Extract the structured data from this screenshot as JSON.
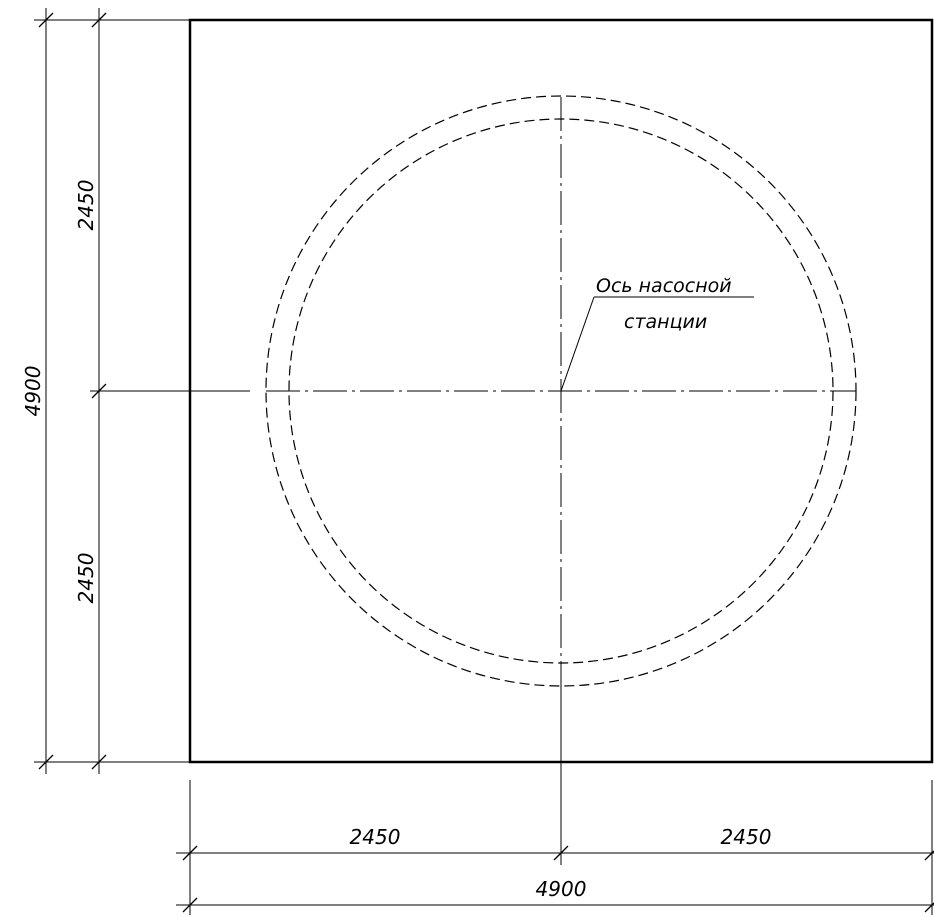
{
  "drawing": {
    "note": {
      "line1": "Ось насосной",
      "line2": "станции"
    },
    "dimensions": {
      "left_upper": "2450",
      "left_lower": "2450",
      "left_total": "4900",
      "bottom_left": "2450",
      "bottom_right": "2450",
      "bottom_total": "4900"
    },
    "colors": {
      "line": "#000000",
      "background": "#ffffff"
    }
  }
}
